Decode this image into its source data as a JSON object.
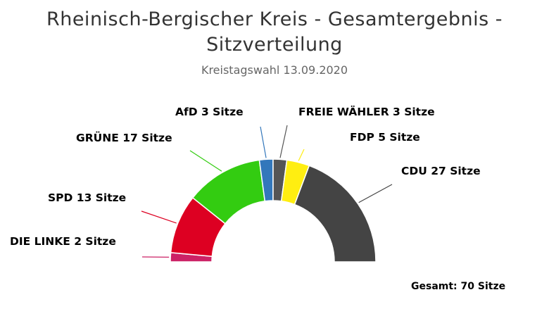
{
  "chart_data": {
    "type": "pie",
    "title": "Rheinisch-Bergischer Kreis - Gesamtergebnis - Sitzverteilung",
    "subtitle": "Kreistagswahl 13.09.2020",
    "total_label": "Gesamt: 70 Sitze",
    "unit": "Sitze",
    "start_angle": -90,
    "end_angle": 90,
    "slices": [
      {
        "label": "DIE LINKE 2 Sitze",
        "party": "DIE LINKE",
        "value": 2,
        "color": "#cc2266"
      },
      {
        "label": "SPD 13 Sitze",
        "party": "SPD",
        "value": 13,
        "color": "#dd0022"
      },
      {
        "label": "GRÜNE 17 Sitze",
        "party": "GRÜNE",
        "value": 17,
        "color": "#33cc11"
      },
      {
        "label": "AfD 3 Sitze",
        "party": "AfD",
        "value": 3,
        "color": "#3377bb"
      },
      {
        "label": "FREIE WÄHLER 3 Sitze",
        "party": "FREIE WÄHLER",
        "value": 3,
        "color": "#555555"
      },
      {
        "label": "FDP 5 Sitze",
        "party": "FDP",
        "value": 5,
        "color": "#ffee11"
      },
      {
        "label": "CDU 27 Sitze",
        "party": "CDU",
        "value": 27,
        "color": "#444444"
      }
    ]
  }
}
